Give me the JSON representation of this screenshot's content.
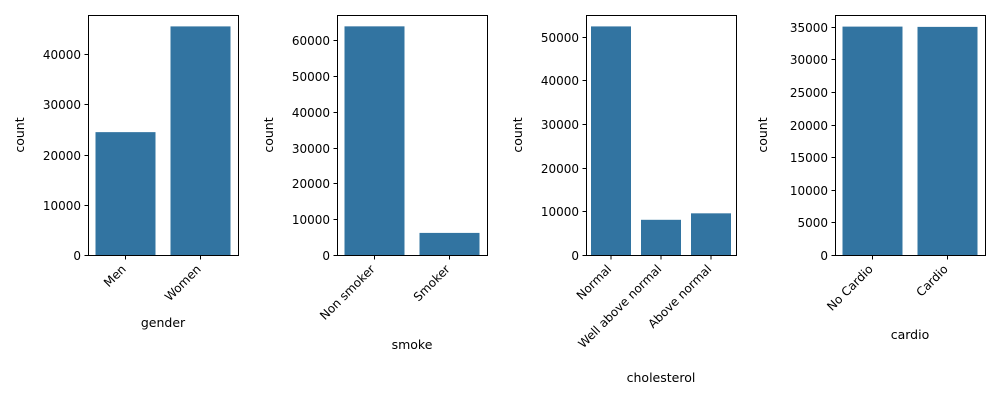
{
  "bar_color": "#3274a1",
  "chart_data": [
    {
      "type": "bar",
      "categories": [
        "Men",
        "Women"
      ],
      "values": [
        24470,
        45530
      ],
      "xlabel": "gender",
      "ylabel": "count",
      "ylim": [
        0,
        47800
      ],
      "yticks": [
        0,
        10000,
        20000,
        30000,
        40000
      ],
      "xtick_rotation": 45
    },
    {
      "type": "bar",
      "categories": [
        "Non smoker",
        "Smoker"
      ],
      "values": [
        63831,
        6169
      ],
      "xlabel": "smoke",
      "ylabel": "count",
      "ylim": [
        0,
        67000
      ],
      "yticks": [
        0,
        10000,
        20000,
        30000,
        40000,
        50000,
        60000
      ],
      "xtick_rotation": 45
    },
    {
      "type": "bar",
      "categories": [
        "Normal",
        "Well above normal",
        "Above normal"
      ],
      "values": [
        52385,
        8066,
        9549
      ],
      "xlabel": "cholesterol",
      "ylabel": "count",
      "ylim": [
        0,
        55000
      ],
      "yticks": [
        0,
        10000,
        20000,
        30000,
        40000,
        50000
      ],
      "xtick_rotation": 45
    },
    {
      "type": "bar",
      "categories": [
        "No Cardio",
        "Cardio"
      ],
      "values": [
        35021,
        34979
      ],
      "xlabel": "cardio",
      "ylabel": "count",
      "ylim": [
        0,
        36800
      ],
      "yticks": [
        0,
        5000,
        10000,
        15000,
        20000,
        25000,
        30000,
        35000
      ],
      "xtick_rotation": 45
    }
  ]
}
